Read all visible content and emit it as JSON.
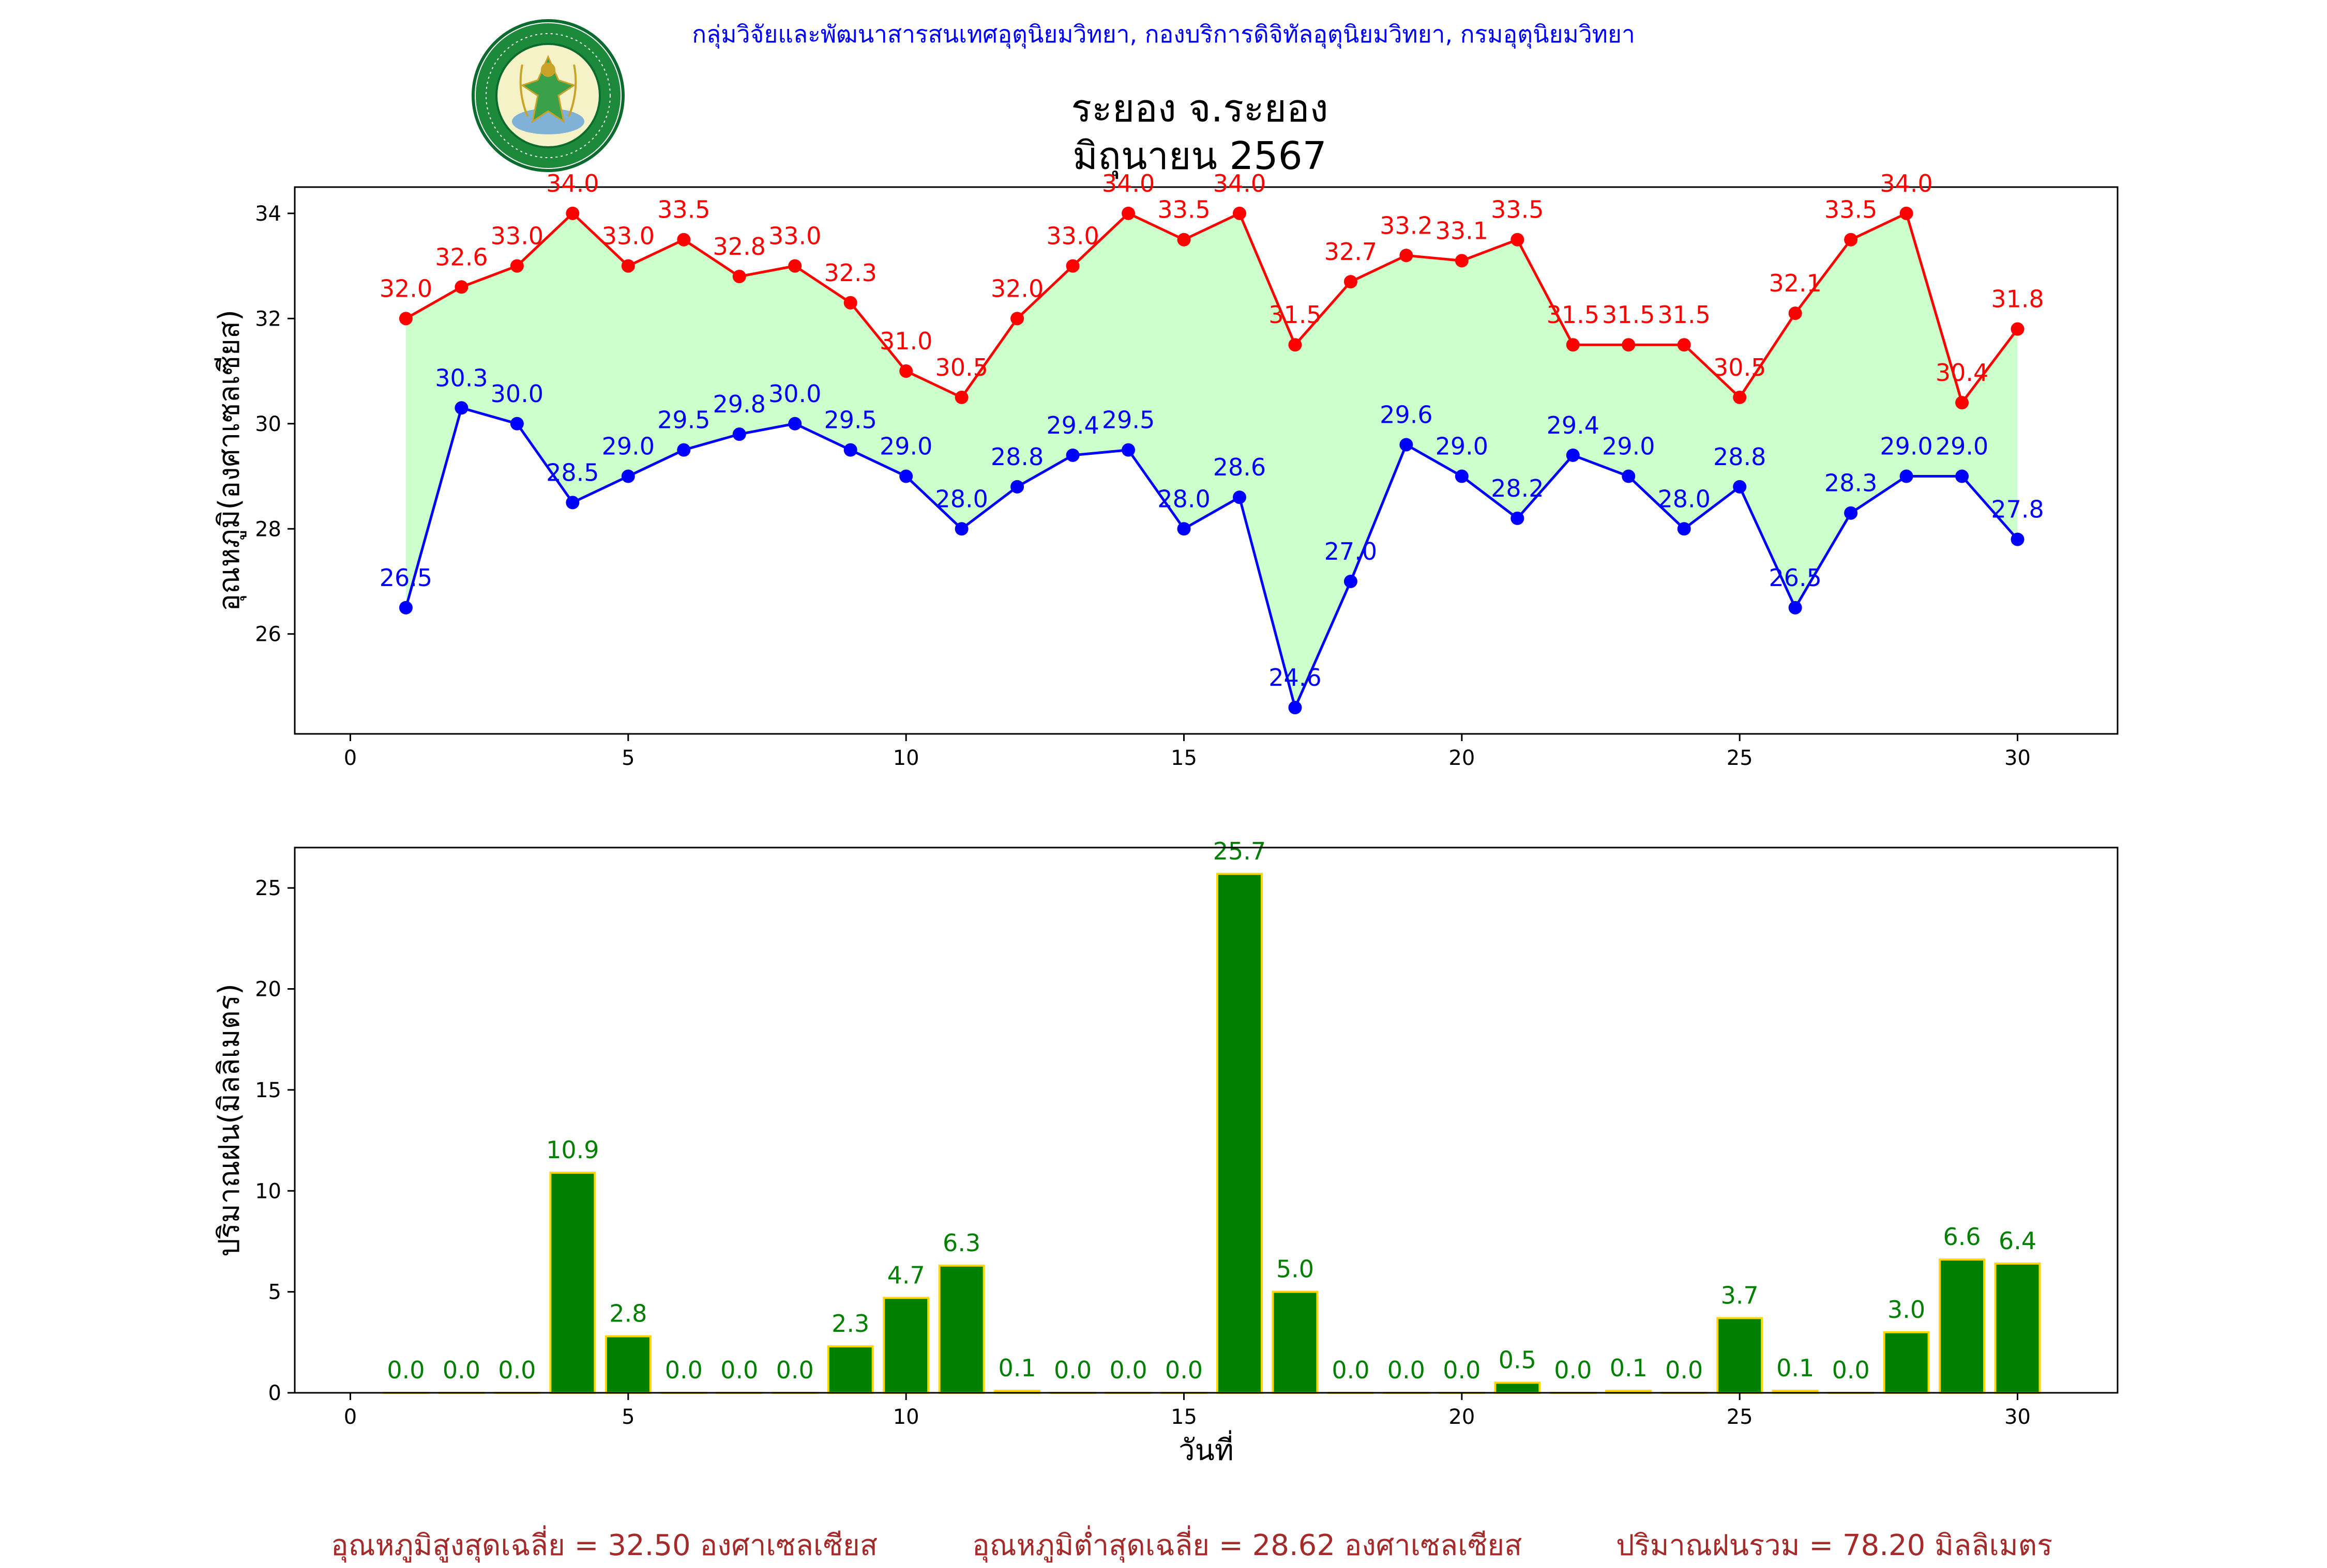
{
  "header": {
    "org_line": "กลุ่มวิจัยและพัฒนาสารสนเทศอุตุนิยมวิทยา, กองบริการดิจิทัลอุตุนิยมวิทยา, กรมอุตุนิยมวิทยา",
    "station": "ระยอง จ.ระยอง",
    "period": "มิถุนายน 2567",
    "logo_text_top": "กรมอุตุนิยมวิทยา",
    "logo_text_bottom": "METEOROLOGICAL DEPARTMENT"
  },
  "footer": {
    "avg_max": "อุณหภูมิสูงสุดเฉลี่ย = 32.50 องศาเซลเซียส",
    "avg_min": "อุณหภูมิต่ำสุดเฉลี่ย = 28.62 องศาเซลเซียส",
    "total_rain": "ปริมาณฝนรวม = 78.20 มิลลิเมตร"
  },
  "chart_data": [
    {
      "type": "line",
      "title": "ระยอง จ.ระยอง\nมิถุนายน 2567",
      "xlabel": "",
      "ylabel": "อุณหภูมิ(องศาเซลเซียส)",
      "xlim": [
        -1,
        31.8
      ],
      "ylim": [
        24.1,
        34.5
      ],
      "xticks": [
        0,
        5,
        10,
        15,
        20,
        25,
        30
      ],
      "yticks": [
        26,
        28,
        30,
        32,
        34
      ],
      "x": [
        1,
        2,
        3,
        4,
        5,
        6,
        7,
        8,
        9,
        10,
        11,
        12,
        13,
        14,
        15,
        16,
        17,
        18,
        19,
        20,
        21,
        22,
        23,
        24,
        25,
        26,
        27,
        28,
        29,
        30
      ],
      "series": [
        {
          "color": "#ff0000",
          "values": [
            32.0,
            32.6,
            33.0,
            34.0,
            33.0,
            33.5,
            32.8,
            33.0,
            32.3,
            31.0,
            30.5,
            32.0,
            33.0,
            34.0,
            33.5,
            34.0,
            31.5,
            32.7,
            33.2,
            33.1,
            33.5,
            31.5,
            31.5,
            31.5,
            30.5,
            32.1,
            33.5,
            34.0,
            30.4,
            31.8
          ]
        },
        {
          "color": "#0000ff",
          "values": [
            26.5,
            30.3,
            30.0,
            28.5,
            29.0,
            29.5,
            29.8,
            30.0,
            29.5,
            29.0,
            28.0,
            28.8,
            29.4,
            29.5,
            28.0,
            28.6,
            24.6,
            27.0,
            29.6,
            29.0,
            28.2,
            29.4,
            29.0,
            28.0,
            28.8,
            26.5,
            28.3,
            29.0,
            29.0,
            27.8
          ]
        }
      ],
      "fill_between_color": "#ccffcc",
      "grid": false
    },
    {
      "type": "bar",
      "title": "",
      "xlabel": "วันที่",
      "ylabel": "ปริมาณฝน(มิลลิเมตร)",
      "xlim": [
        -1,
        31.8
      ],
      "ylim": [
        0,
        27
      ],
      "xticks": [
        0,
        5,
        10,
        15,
        20,
        25,
        30
      ],
      "yticks": [
        0,
        5,
        10,
        15,
        20,
        25
      ],
      "x": [
        1,
        2,
        3,
        4,
        5,
        6,
        7,
        8,
        9,
        10,
        11,
        12,
        13,
        14,
        15,
        16,
        17,
        18,
        19,
        20,
        21,
        22,
        23,
        24,
        25,
        26,
        27,
        28,
        29,
        30
      ],
      "values": [
        0.0,
        0.0,
        0.0,
        10.9,
        2.8,
        0.0,
        0.0,
        0.0,
        2.3,
        4.7,
        6.3,
        0.1,
        0.0,
        0.0,
        0.0,
        25.7,
        5.0,
        0.0,
        0.0,
        0.0,
        0.5,
        0.0,
        0.1,
        0.0,
        3.7,
        0.1,
        0.0,
        3.0,
        6.6,
        6.4
      ],
      "bar_color": "#008000",
      "edge_color": "#ffd700",
      "label_color": "#008000",
      "grid": false
    }
  ]
}
